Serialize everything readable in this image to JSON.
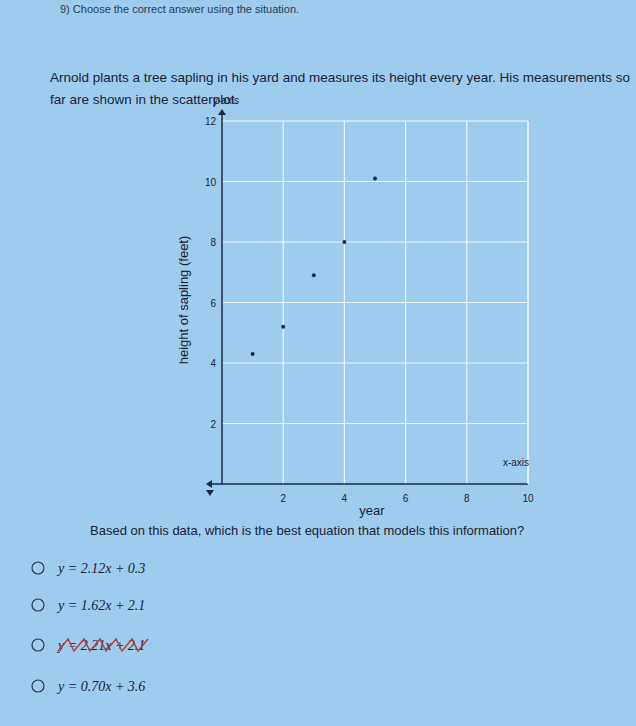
{
  "header": "9) Choose the correct answer using the situation.",
  "intro": [
    "Arnold plants a tree sapling in his yard and measures its height every year. His measurements so",
    "far are shown in the scatterplot."
  ],
  "chart_data": {
    "type": "scatter",
    "x_label": "year",
    "y_label": "height of sapling (feet)",
    "x_axis_name": "x-axis",
    "y_axis_name": "y-axis",
    "x": [
      1,
      2,
      3,
      4,
      5
    ],
    "values": [
      4.3,
      5.2,
      6.9,
      8.0,
      10.1
    ],
    "color": "#1b2a44",
    "xlim": [
      0,
      10
    ],
    "ylim": [
      0,
      12
    ],
    "xticks": [
      2,
      4,
      6,
      8,
      10
    ],
    "yticks": [
      2,
      4,
      6,
      8,
      10,
      12
    ],
    "grid": true
  },
  "question": "Based on this data, which is the best equation that models this information?",
  "choices": [
    "y = 2.12x + 0.3",
    "y = 1.62x + 2.1",
    "y = 2.21x + 2.1",
    "y = 0.70x + 3.6"
  ]
}
